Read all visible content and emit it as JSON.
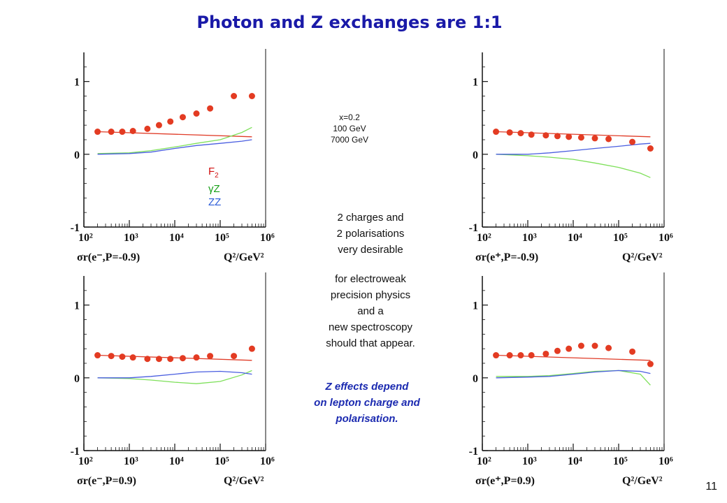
{
  "title": "Photon and Z exchanges are 1:1",
  "page_number": "11",
  "center_text": {
    "params": [
      "x=0.2",
      "100 GeV",
      "7000 GeV"
    ],
    "charges": [
      "2 charges and",
      "2 polarisations",
      "very desirable"
    ],
    "purpose": [
      "for electroweak",
      "precision physics",
      "and a",
      "new spectroscopy",
      "should that appear."
    ],
    "conclusion": [
      "Z effects depend",
      "on lepton charge and",
      "polarisation."
    ]
  },
  "legend": {
    "entries": [
      {
        "label": "F",
        "sub": "2",
        "color": "#d01010"
      },
      {
        "label": "γZ",
        "color": "#18a018"
      },
      {
        "label": "ZZ",
        "color": "#2a5bd8"
      }
    ]
  },
  "colors": {
    "f2": "#e03c28",
    "gz": "#7ee05a",
    "zz": "#4a5ee0",
    "points": "#e33b22"
  },
  "chart_data": [
    {
      "type": "scatter",
      "panel": "top-left",
      "xlabel": "Q²/GeV²",
      "caption": "σr(e⁻,P=-0.9)",
      "xscale": "log",
      "xlim": [
        100,
        1000000
      ],
      "ylim": [
        -1,
        1.4
      ],
      "xticks": [
        "10²",
        "10³",
        "10⁴",
        "10⁵",
        "10⁶"
      ],
      "yticks": [
        "1",
        "0",
        "-1"
      ],
      "points": {
        "x": [
          200,
          400,
          700,
          1200,
          2500,
          4500,
          8000,
          15000,
          30000,
          60000,
          200000,
          500000
        ],
        "y": [
          0.31,
          0.31,
          0.31,
          0.32,
          0.35,
          0.4,
          0.45,
          0.51,
          0.56,
          0.63,
          0.8,
          0.8
        ]
      },
      "series": [
        {
          "key": "f2",
          "x": [
            200,
            500000
          ],
          "y": [
            0.31,
            0.24
          ]
        },
        {
          "key": "gz",
          "x": [
            200,
            1000,
            3000,
            10000,
            30000,
            100000,
            300000,
            500000
          ],
          "y": [
            0.01,
            0.02,
            0.05,
            0.1,
            0.15,
            0.2,
            0.3,
            0.37
          ]
        },
        {
          "key": "zz",
          "x": [
            200,
            1000,
            3000,
            10000,
            30000,
            100000,
            300000,
            500000
          ],
          "y": [
            0.0,
            0.01,
            0.03,
            0.08,
            0.12,
            0.15,
            0.18,
            0.2
          ]
        }
      ]
    },
    {
      "type": "scatter",
      "panel": "top-right",
      "xlabel": "Q²/GeV²",
      "caption": "σr(e⁺,P=-0.9)",
      "xscale": "log",
      "xlim": [
        100,
        1000000
      ],
      "ylim": [
        -1,
        1.4
      ],
      "xticks": [
        "10²",
        "10³",
        "10⁴",
        "10⁵",
        "10⁶"
      ],
      "yticks": [
        "1",
        "0",
        "-1"
      ],
      "points": {
        "x": [
          200,
          400,
          700,
          1200,
          2500,
          4500,
          8000,
          15000,
          30000,
          60000,
          200000,
          500000
        ],
        "y": [
          0.31,
          0.3,
          0.29,
          0.27,
          0.26,
          0.25,
          0.24,
          0.23,
          0.22,
          0.21,
          0.17,
          0.08
        ]
      },
      "series": [
        {
          "key": "f2",
          "x": [
            200,
            500000
          ],
          "y": [
            0.31,
            0.24
          ]
        },
        {
          "key": "gz",
          "x": [
            200,
            1000,
            3000,
            10000,
            30000,
            100000,
            300000,
            500000
          ],
          "y": [
            0.0,
            -0.02,
            -0.04,
            -0.07,
            -0.12,
            -0.18,
            -0.26,
            -0.32
          ]
        },
        {
          "key": "zz",
          "x": [
            200,
            1000,
            3000,
            10000,
            30000,
            100000,
            300000,
            500000
          ],
          "y": [
            0.0,
            0.0,
            0.02,
            0.05,
            0.08,
            0.11,
            0.14,
            0.15
          ]
        }
      ]
    },
    {
      "type": "scatter",
      "panel": "bottom-left",
      "xlabel": "Q²/GeV²",
      "caption": "σr(e⁻,P=0.9)",
      "xscale": "log",
      "xlim": [
        100,
        1000000
      ],
      "ylim": [
        -1,
        1.4
      ],
      "xticks": [
        "10²",
        "10³",
        "10⁴",
        "10⁵",
        "10⁶"
      ],
      "yticks": [
        "1",
        "0",
        "-1"
      ],
      "points": {
        "x": [
          200,
          400,
          700,
          1200,
          2500,
          4500,
          8000,
          15000,
          30000,
          60000,
          200000,
          500000
        ],
        "y": [
          0.31,
          0.3,
          0.29,
          0.28,
          0.26,
          0.26,
          0.26,
          0.27,
          0.28,
          0.3,
          0.3,
          0.4
        ]
      },
      "series": [
        {
          "key": "f2",
          "x": [
            200,
            500000
          ],
          "y": [
            0.31,
            0.24
          ]
        },
        {
          "key": "gz",
          "x": [
            200,
            1000,
            3000,
            10000,
            30000,
            100000,
            300000,
            500000
          ],
          "y": [
            0.0,
            -0.01,
            -0.03,
            -0.06,
            -0.08,
            -0.05,
            0.04,
            0.1
          ]
        },
        {
          "key": "zz",
          "x": [
            200,
            1000,
            3000,
            10000,
            30000,
            100000,
            300000,
            500000
          ],
          "y": [
            0.0,
            0.0,
            0.02,
            0.05,
            0.08,
            0.09,
            0.07,
            0.05
          ]
        }
      ]
    },
    {
      "type": "scatter",
      "panel": "bottom-right",
      "xlabel": "Q²/GeV²",
      "caption": "σr(e⁺,P=0.9)",
      "xscale": "log",
      "xlim": [
        100,
        1000000
      ],
      "ylim": [
        -1,
        1.4
      ],
      "xticks": [
        "10²",
        "10³",
        "10⁴",
        "10⁵",
        "10⁶"
      ],
      "yticks": [
        "1",
        "0",
        "-1"
      ],
      "points": {
        "x": [
          200,
          400,
          700,
          1200,
          2500,
          4500,
          8000,
          15000,
          30000,
          60000,
          200000,
          500000
        ],
        "y": [
          0.31,
          0.31,
          0.31,
          0.31,
          0.33,
          0.37,
          0.4,
          0.44,
          0.44,
          0.41,
          0.36,
          0.19
        ]
      },
      "series": [
        {
          "key": "f2",
          "x": [
            200,
            500000
          ],
          "y": [
            0.31,
            0.24
          ]
        },
        {
          "key": "gz",
          "x": [
            200,
            1000,
            3000,
            10000,
            30000,
            100000,
            300000,
            500000
          ],
          "y": [
            0.02,
            0.02,
            0.03,
            0.06,
            0.09,
            0.1,
            0.05,
            -0.1
          ]
        },
        {
          "key": "zz",
          "x": [
            200,
            1000,
            3000,
            10000,
            30000,
            100000,
            300000,
            500000
          ],
          "y": [
            0.0,
            0.01,
            0.02,
            0.05,
            0.08,
            0.1,
            0.09,
            0.06
          ]
        }
      ]
    }
  ]
}
